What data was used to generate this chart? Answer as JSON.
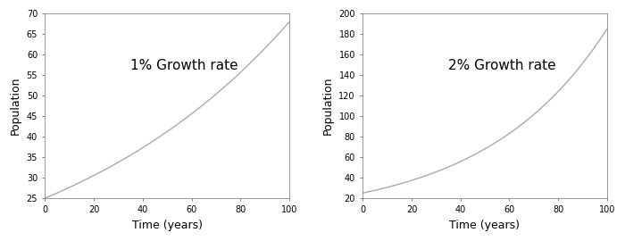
{
  "p0": 25,
  "rate1": 0.01,
  "rate2": 0.02,
  "t_max": 100,
  "xlim": [
    0,
    100
  ],
  "ylim1": [
    25,
    70
  ],
  "ylim2": [
    20,
    200
  ],
  "yticks1": [
    25,
    30,
    35,
    40,
    45,
    50,
    55,
    60,
    65,
    70
  ],
  "yticks2": [
    20,
    40,
    60,
    80,
    100,
    120,
    140,
    160,
    180,
    200
  ],
  "xticks": [
    0,
    20,
    40,
    60,
    80,
    100
  ],
  "xlabel": "Time (years)",
  "ylabel": "Population",
  "label1": "1% Growth rate",
  "label2": "2% Growth rate",
  "line_color": "#aaaaaa",
  "line_width": 1.0,
  "text_fontsize": 11,
  "label_fontsize": 9,
  "tick_fontsize": 7,
  "bg_color": "#ffffff"
}
